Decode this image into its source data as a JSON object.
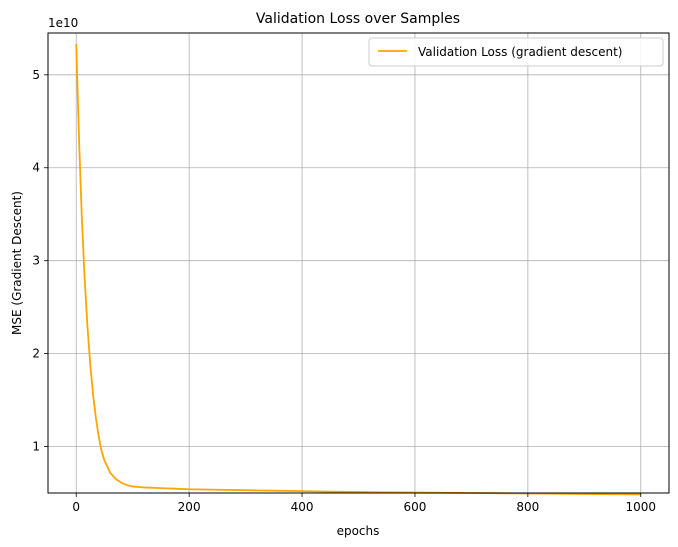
{
  "chart_data": {
    "type": "line",
    "title": "Validation Loss over Samples",
    "xlabel": "epochs",
    "ylabel": "MSE (Gradient Descent)",
    "y_offset_label": "1e10",
    "xlim": [
      -50,
      1050
    ],
    "ylim": [
      0.5,
      5.45
    ],
    "xticks": [
      0,
      200,
      400,
      600,
      800,
      1000
    ],
    "xtick_labels": [
      "0",
      "200",
      "400",
      "600",
      "800",
      "1000"
    ],
    "yticks": [
      1,
      2,
      3,
      4,
      5
    ],
    "ytick_labels": [
      "1",
      "2",
      "3",
      "4",
      "5"
    ],
    "grid": true,
    "legend_position": "upper right",
    "series": [
      {
        "name": "Validation Loss (gradient descent)",
        "color": "#ffa500",
        "x": [
          0,
          5,
          10,
          15,
          20,
          25,
          30,
          35,
          40,
          45,
          50,
          60,
          70,
          80,
          90,
          100,
          120,
          140,
          160,
          180,
          200,
          250,
          300,
          350,
          400,
          450,
          500,
          600,
          700,
          800,
          900,
          1000
        ],
        "y": [
          5.33,
          4.3,
          3.45,
          2.8,
          2.28,
          1.87,
          1.55,
          1.3,
          1.1,
          0.95,
          0.85,
          0.72,
          0.65,
          0.61,
          0.585,
          0.57,
          0.56,
          0.555,
          0.55,
          0.545,
          0.54,
          0.535,
          0.53,
          0.525,
          0.52,
          0.515,
          0.51,
          0.505,
          0.5,
          0.495,
          0.49,
          0.485
        ]
      }
    ]
  }
}
